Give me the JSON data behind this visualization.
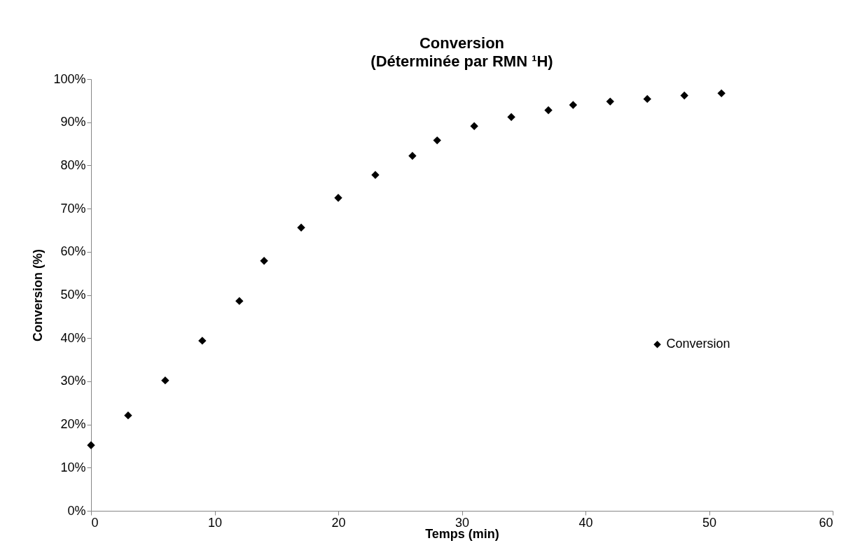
{
  "chart_data": {
    "type": "scatter",
    "title": "Conversion",
    "subtitle": "(Déterminée par RMN ¹H)",
    "xlabel": "Temps (min)",
    "ylabel": "Conversion (%)",
    "x": [
      0,
      3,
      6,
      9,
      12,
      14,
      17,
      20,
      23,
      26,
      28,
      31,
      34,
      37,
      39,
      42,
      45,
      48,
      51
    ],
    "series": [
      {
        "name": "Conversion",
        "color": "#000000",
        "values": [
          15.2,
          22.1,
          30.2,
          39.4,
          48.6,
          57.9,
          65.6,
          72.5,
          77.8,
          82.2,
          85.8,
          89.1,
          91.2,
          92.8,
          94.0,
          94.8,
          95.4,
          96.2,
          96.7
        ]
      }
    ],
    "xlim": [
      0,
      60
    ],
    "xticks": [
      0,
      10,
      20,
      30,
      40,
      50,
      60
    ],
    "ylim": [
      0,
      100
    ],
    "yticks": [
      {
        "value": 0,
        "label": "0%"
      },
      {
        "value": 10,
        "label": "10%"
      },
      {
        "value": 20,
        "label": "20%"
      },
      {
        "value": 30,
        "label": "30%"
      },
      {
        "value": 40,
        "label": "40%"
      },
      {
        "value": 50,
        "label": "50%"
      },
      {
        "value": 60,
        "label": "60%"
      },
      {
        "value": 70,
        "label": "70%"
      },
      {
        "value": 80,
        "label": "80%"
      },
      {
        "value": 90,
        "label": "90%"
      },
      {
        "value": 100,
        "label": "100%"
      }
    ],
    "grid": false,
    "legend": "right",
    "marker": "diamond"
  }
}
